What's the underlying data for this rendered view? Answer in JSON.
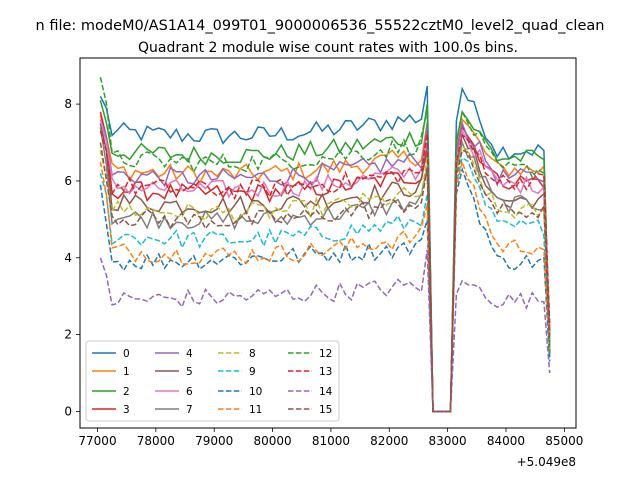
{
  "chart_data": {
    "type": "line",
    "suptitle": "n file: modeM0/AS1A14_099T01_9000006536_55522cztM0_level2_quad_clean",
    "title": "Quadrant 2 module wise count rates with 100.0s bins.",
    "xlabel": "",
    "ylabel": "",
    "offset_label": "+5.049e8",
    "xlim": [
      76700,
      85200
    ],
    "ylim": [
      -0.43,
      9.2
    ],
    "xticks": [
      77000,
      78000,
      79000,
      80000,
      81000,
      82000,
      83000,
      84000,
      85000
    ],
    "xtick_labels": [
      "77000",
      "78000",
      "79000",
      "80000",
      "81000",
      "82000",
      "83000",
      "84000",
      "85000"
    ],
    "yticks": [
      0,
      2,
      4,
      6,
      8
    ],
    "ytick_labels": [
      "0",
      "2",
      "4",
      "6",
      "8"
    ],
    "legend_position": "lower left",
    "legend_columns": 4,
    "series": [
      {
        "name": "0",
        "color": "#1f77b4",
        "style": "solid",
        "start": 8.2,
        "base": 7.3,
        "tail": 6.8,
        "dip": 0.0,
        "peak": 8.4
      },
      {
        "name": "1",
        "color": "#ff7f0e",
        "style": "solid",
        "start": 7.7,
        "base": 6.3,
        "tail": 6.3,
        "dip": 0.0,
        "peak": 7.6
      },
      {
        "name": "2",
        "color": "#2ca02c",
        "style": "solid",
        "start": 8.1,
        "base": 6.8,
        "tail": 6.6,
        "dip": 0.0,
        "peak": 7.8
      },
      {
        "name": "3",
        "color": "#d62728",
        "style": "solid",
        "start": 7.8,
        "base": 5.8,
        "tail": 6.0,
        "dip": 0.0,
        "peak": 7.4
      },
      {
        "name": "4",
        "color": "#9467bd",
        "style": "solid",
        "start": 7.6,
        "base": 6.2,
        "tail": 6.1,
        "dip": 0.0,
        "peak": 7.5
      },
      {
        "name": "5",
        "color": "#8c564b",
        "style": "solid",
        "start": 7.5,
        "base": 5.5,
        "tail": 5.5,
        "dip": 0.0,
        "peak": 7.2
      },
      {
        "name": "6",
        "color": "#e377c2",
        "style": "solid",
        "start": 7.6,
        "base": 5.9,
        "tail": 5.9,
        "dip": 0.0,
        "peak": 7.3
      },
      {
        "name": "7",
        "color": "#7f7f7f",
        "style": "solid",
        "start": 7.4,
        "base": 5.1,
        "tail": 5.4,
        "dip": 0.0,
        "peak": 7.0
      },
      {
        "name": "8",
        "color": "#bcbd22",
        "style": "dashed",
        "start": 6.8,
        "base": 5.3,
        "tail": 5.2,
        "dip": 0.0,
        "peak": 6.9
      },
      {
        "name": "9",
        "color": "#17becf",
        "style": "dashed",
        "start": 6.2,
        "base": 4.6,
        "tail": 4.8,
        "dip": 0.0,
        "peak": 6.6
      },
      {
        "name": "10",
        "color": "#1f77b4",
        "style": "dashed",
        "start": 5.9,
        "base": 3.9,
        "tail": 3.9,
        "dip": 0.0,
        "peak": 6.3
      },
      {
        "name": "11",
        "color": "#ff7f0e",
        "style": "dashed",
        "start": 6.5,
        "base": 4.2,
        "tail": 4.3,
        "dip": 0.0,
        "peak": 6.5
      },
      {
        "name": "12",
        "color": "#2ca02c",
        "style": "dashed",
        "start": 8.7,
        "base": 6.6,
        "tail": 6.3,
        "dip": 0.0,
        "peak": 7.8
      },
      {
        "name": "13",
        "color": "#d62728",
        "style": "dashed",
        "start": 7.3,
        "base": 5.9,
        "tail": 6.0,
        "dip": 0.0,
        "peak": 7.2
      },
      {
        "name": "14",
        "color": "#9467bd",
        "style": "dashed",
        "start": 4.0,
        "base": 2.9,
        "tail": 2.9,
        "dip": 0.0,
        "peak": 3.4
      },
      {
        "name": "15",
        "color": "#8c564b",
        "style": "dashed",
        "start": 7.0,
        "base": 5.1,
        "tail": 5.2,
        "dip": 0.0,
        "peak": 6.8
      }
    ],
    "time_profile": {
      "x_start": 77050,
      "x_end": 84750,
      "step": 100,
      "dip_start": 82700,
      "dip_end": 83100,
      "peak_x": 83250,
      "end_drop_x": 84750,
      "end_values": [
        1.6,
        2.0,
        1.8,
        2.1,
        1.9,
        1.5,
        2.2,
        1.9,
        1.7,
        1.4,
        1.3,
        1.6,
        1.5,
        2.3,
        1.0,
        1.8
      ]
    }
  }
}
